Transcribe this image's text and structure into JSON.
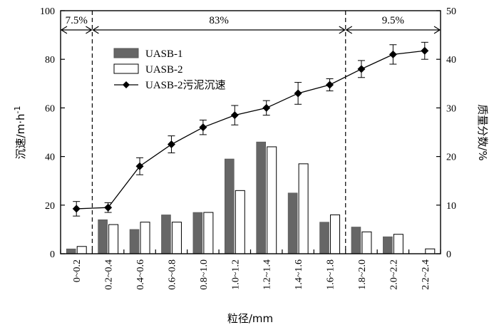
{
  "chart_data": {
    "type": "bar",
    "categories": [
      "0~0.2",
      "0.2~0.4",
      "0.4~0.6",
      "0.6~0.8",
      "0.8~1.0",
      "1.0~1.2",
      "1.2~1.4",
      "1.4~1.6",
      "1.6~1.8",
      "1.8~2.0",
      "2.0~2.2",
      "2.2~2.4"
    ],
    "xlabel": "粒径/mm",
    "ylabel_left": "沉速/m·h",
    "ylabel_left_sup": "-1",
    "ylabel_right": "质量分数/%",
    "ylim_left": [
      0,
      100
    ],
    "ylim_right": [
      0,
      50
    ],
    "yticks_left": [
      "0",
      "20",
      "40",
      "60",
      "80",
      "100"
    ],
    "yticks_right": [
      "0",
      "10",
      "20",
      "30",
      "40",
      "50"
    ],
    "grid": false,
    "legend": "top-left",
    "series": [
      {
        "name": "UASB-1",
        "type": "bar",
        "axis": "right",
        "color": "#666666",
        "values": [
          1,
          7,
          5,
          8,
          8.5,
          19.5,
          23,
          12.5,
          6.5,
          5.5,
          3.5,
          0
        ]
      },
      {
        "name": "UASB-2",
        "type": "bar",
        "axis": "right",
        "color": "#ffffff",
        "values": [
          1.5,
          6,
          6.5,
          6.5,
          8.5,
          13,
          22,
          18.5,
          8,
          4.5,
          4,
          1
        ]
      },
      {
        "name": "UASB-2污泥沉速",
        "type": "line",
        "axis": "left",
        "color": "#000000",
        "values": [
          18.5,
          19,
          36,
          45,
          52,
          57,
          60,
          66,
          69.5,
          76,
          82,
          83.5
        ],
        "errors": [
          3,
          2,
          3.5,
          3.5,
          3,
          4,
          3,
          4.5,
          2.5,
          3.5,
          4,
          3.5
        ]
      }
    ],
    "annotations": [
      {
        "text": "7.5%",
        "from_category": 0,
        "to_category": 1
      },
      {
        "text": "83%",
        "from_category": 1,
        "to_category": 9
      },
      {
        "text": "9.5%",
        "from_category": 9,
        "to_category": 12
      }
    ]
  }
}
